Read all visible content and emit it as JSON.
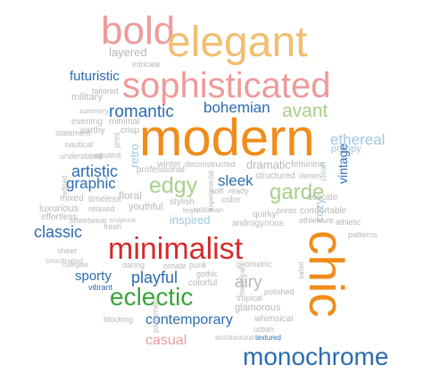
{
  "palette": {
    "blue": "#2b6cb0",
    "lightblue": "#9fc6e0",
    "orange": "#f08c1a",
    "peach": "#f2be72",
    "pink": "#ee9a9a",
    "red": "#d62b2b",
    "green": "#3aa53a",
    "lightgreen": "#a8d08a",
    "gray": "#b8b8b8"
  },
  "words": [
    {
      "text": "bold",
      "color": "pink"
    },
    {
      "text": "elegant",
      "color": "peach"
    },
    {
      "text": "layered",
      "color": "gray"
    },
    {
      "text": "intricate",
      "color": "gray"
    },
    {
      "text": "futuristic",
      "color": "blue"
    },
    {
      "text": "sophisticated",
      "color": "pink"
    },
    {
      "text": "military",
      "color": "gray"
    },
    {
      "text": "tailored",
      "color": "gray"
    },
    {
      "text": "summery",
      "color": "gray"
    },
    {
      "text": "romantic",
      "color": "blue"
    },
    {
      "text": "bohemian",
      "color": "blue"
    },
    {
      "text": "avant",
      "color": "lightgreen"
    },
    {
      "text": "evening",
      "color": "gray"
    },
    {
      "text": "minimal",
      "color": "gray"
    },
    {
      "text": "statement",
      "color": "gray"
    },
    {
      "text": "earthy",
      "color": "gray"
    },
    {
      "text": "crisp",
      "color": "gray"
    },
    {
      "text": "modern",
      "color": "orange"
    },
    {
      "text": "ethereal",
      "color": "lightblue"
    },
    {
      "text": "nautical",
      "color": "gray"
    },
    {
      "text": "understated",
      "color": "gray"
    },
    {
      "text": "print",
      "color": "gray"
    },
    {
      "text": "preppy",
      "color": "lightblue"
    },
    {
      "text": "retro",
      "color": "lightblue"
    },
    {
      "text": "opulent",
      "color": "gray"
    },
    {
      "text": "artistic",
      "color": "blue"
    },
    {
      "text": "winter",
      "color": "gray"
    },
    {
      "text": "deconstructed",
      "color": "gray"
    },
    {
      "text": "dramatic",
      "color": "gray"
    },
    {
      "text": "feminine",
      "color": "gray"
    },
    {
      "text": "graphic",
      "color": "blue"
    },
    {
      "text": "professional",
      "color": "gray"
    },
    {
      "text": "edgy",
      "color": "lightgreen"
    },
    {
      "text": "sleek",
      "color": "blue"
    },
    {
      "text": "structured",
      "color": "gray"
    },
    {
      "text": "denim",
      "color": "gray"
    },
    {
      "text": "vintage",
      "color": "blue"
    },
    {
      "text": "clean",
      "color": "lightblue"
    },
    {
      "text": "refined",
      "color": "gray"
    },
    {
      "text": "floral",
      "color": "gray"
    },
    {
      "text": "stylish",
      "color": "gray"
    },
    {
      "text": "soft",
      "color": "gray"
    },
    {
      "text": "ready",
      "color": "gray"
    },
    {
      "text": "garde",
      "color": "lightgreen"
    },
    {
      "text": "delicate",
      "color": "gray"
    },
    {
      "text": "mixed",
      "color": "gray"
    },
    {
      "text": "timeless",
      "color": "gray"
    },
    {
      "text": "color",
      "color": "gray"
    },
    {
      "text": "luxurious",
      "color": "gray"
    },
    {
      "text": "relaxed",
      "color": "gray"
    },
    {
      "text": "youthful",
      "color": "gray"
    },
    {
      "text": "utilitarian",
      "color": "gray"
    },
    {
      "text": "cozy",
      "color": "lightblue"
    },
    {
      "text": "effortless",
      "color": "gray"
    },
    {
      "text": "bright",
      "color": "gray"
    },
    {
      "text": "experimental",
      "color": "gray"
    },
    {
      "text": "quirky",
      "color": "gray"
    },
    {
      "text": "prints",
      "color": "gray"
    },
    {
      "text": "comfortable",
      "color": "gray"
    },
    {
      "text": "streetwear",
      "color": "gray"
    },
    {
      "text": "sculptural",
      "color": "gray"
    },
    {
      "text": "inspired",
      "color": "lightblue"
    },
    {
      "text": "androgynous",
      "color": "gray"
    },
    {
      "text": "athleisure",
      "color": "gray"
    },
    {
      "text": "athletic",
      "color": "gray"
    },
    {
      "text": "classic",
      "color": "blue"
    },
    {
      "text": "fresh",
      "color": "gray"
    },
    {
      "text": "patterns",
      "color": "gray"
    },
    {
      "text": "minimalist",
      "color": "red"
    },
    {
      "text": "sheer",
      "color": "gray"
    },
    {
      "text": "coordinated",
      "color": "gray"
    },
    {
      "text": "chic",
      "color": "orange"
    },
    {
      "text": "collegiate",
      "color": "gray"
    },
    {
      "text": "daring",
      "color": "gray"
    },
    {
      "text": "ornate",
      "color": "gray"
    },
    {
      "text": "punk",
      "color": "gray"
    },
    {
      "text": "geometric",
      "color": "gray"
    },
    {
      "text": "sporty",
      "color": "blue"
    },
    {
      "text": "playful",
      "color": "blue"
    },
    {
      "text": "gothic",
      "color": "gray"
    },
    {
      "text": "safari",
      "color": "gray"
    },
    {
      "text": "vibrant",
      "color": "blue"
    },
    {
      "text": "airy",
      "color": "gray"
    },
    {
      "text": "colorful",
      "color": "gray"
    },
    {
      "text": "polished",
      "color": "gray"
    },
    {
      "text": "eclectic",
      "color": "green"
    },
    {
      "text": "theatrical",
      "color": "gray"
    },
    {
      "text": "tropical",
      "color": "gray"
    },
    {
      "text": "glamorous",
      "color": "gray"
    },
    {
      "text": "blocking",
      "color": "gray"
    },
    {
      "text": "contemporary",
      "color": "blue"
    },
    {
      "text": "whimsical",
      "color": "gray"
    },
    {
      "text": "urban",
      "color": "gray"
    },
    {
      "text": "patterned",
      "color": "gray"
    },
    {
      "text": "architectural",
      "color": "gray"
    },
    {
      "text": "textured",
      "color": "blue"
    },
    {
      "text": "casual",
      "color": "pink"
    },
    {
      "text": "monochrome",
      "color": "blue"
    }
  ]
}
